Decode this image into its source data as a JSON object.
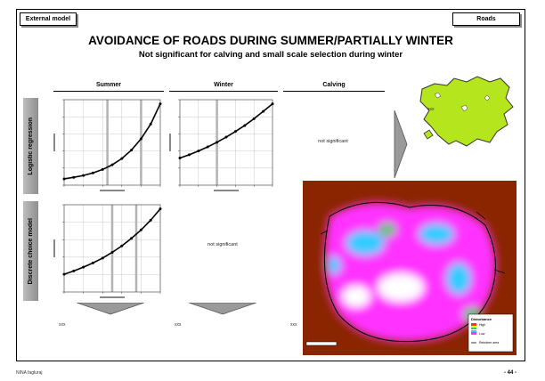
{
  "header": {
    "left_tag": "External model",
    "right_tag": "Roads",
    "title": "AVOIDANCE OF ROADS DURING SUMMER/PARTIALLY WINTER",
    "subtitle": "Not significant for calving and small scale selection during winter"
  },
  "columns": [
    "Summer",
    "Winter",
    "Calving"
  ],
  "rows": [
    "Logistic regression",
    "Discrete choice model"
  ],
  "cells": {
    "calving_logistic": "not significant",
    "winter_dcm": "not significant"
  },
  "placeholders": [
    "xxx",
    "xxx",
    "xxx"
  ],
  "map_label": "xxx",
  "legend": {
    "title": "Disturbance",
    "items": [
      "High",
      "Low",
      "Reindeer area"
    ]
  },
  "footer": {
    "left": "NINA fagluraj",
    "right": "- 44 -"
  },
  "colors": {
    "curve": "#000000",
    "grid": "#c8c8c8",
    "highlight": "#b3b3b3",
    "area_fill": "#b5e61d",
    "heat_low": "#8b2500",
    "heat_mid": "#ff33ff",
    "heat_alt": "#33ccff",
    "heat_green": "#33cc66"
  },
  "chart_data": [
    {
      "type": "scatter",
      "panel": "Logistic regression / Summer",
      "shape": "increasing convex",
      "x": [
        0,
        1,
        2,
        3,
        4,
        5,
        6,
        7,
        8,
        9,
        10
      ],
      "y": [
        2,
        2.5,
        3.1,
        3.9,
        5,
        6.5,
        8.5,
        11.2,
        14.8,
        19.5,
        26
      ]
    },
    {
      "type": "scatter",
      "panel": "Logistic regression / Winter",
      "shape": "increasing, mildly convex",
      "x": [
        0,
        1,
        2,
        3,
        4,
        5,
        6,
        7,
        8,
        9,
        10
      ],
      "y": [
        10,
        11.2,
        12.6,
        14.1,
        15.8,
        17.7,
        19.8,
        22,
        24.5,
        27.2,
        30
      ]
    },
    {
      "type": "scatter",
      "panel": "Discrete choice model / Summer",
      "shape": "increasing convex",
      "x": [
        0,
        1,
        2,
        3,
        4,
        5,
        6,
        7,
        8,
        9,
        10
      ],
      "y": [
        8,
        9.5,
        11.2,
        13.1,
        15.3,
        17.9,
        20.8,
        24.2,
        28,
        32.4,
        37.5
      ]
    }
  ]
}
